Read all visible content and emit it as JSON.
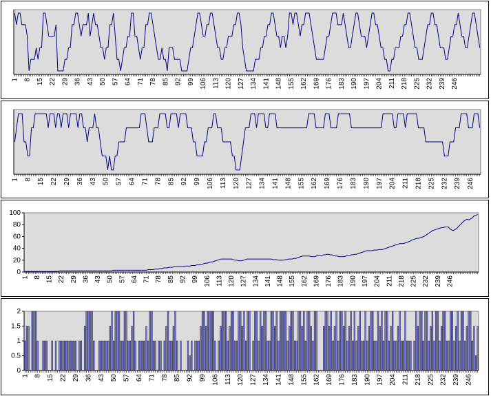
{
  "chart_data": [
    {
      "type": "line",
      "title": "",
      "xlabel": "",
      "ylabel": "",
      "x_range": [
        1,
        250
      ],
      "x_tick_labels": [
        "1",
        "8",
        "15",
        "22",
        "29",
        "36",
        "43",
        "50",
        "57",
        "64",
        "71",
        "78",
        "85",
        "92",
        "99",
        "106",
        "113",
        "120",
        "127",
        "134",
        "141",
        "148",
        "155",
        "162",
        "169",
        "176",
        "183",
        "190",
        "197",
        "204",
        "211",
        "218",
        "225",
        "232",
        "239",
        "246"
      ],
      "y_tick_labels": [],
      "grid": false,
      "line_color": "#000080",
      "plot_background": "#dcdcdc",
      "series": [
        {
          "name": "",
          "values": [
            9,
            8,
            9,
            9,
            8,
            8,
            8,
            7,
            4,
            5,
            5,
            5,
            6,
            5,
            6,
            6,
            9,
            9,
            8,
            7,
            7,
            7,
            7,
            8,
            4,
            4,
            4,
            4,
            5,
            5,
            6,
            6,
            8,
            8,
            9,
            9,
            8,
            7,
            8,
            8,
            8,
            9,
            7,
            8,
            9,
            8,
            8,
            7,
            6,
            6,
            5,
            6,
            6,
            8,
            8,
            9,
            7,
            5,
            5,
            4,
            5,
            6,
            6,
            7,
            7,
            9,
            9,
            7,
            7,
            6,
            5,
            6,
            6,
            8,
            8,
            9,
            9,
            8,
            7,
            6,
            5,
            5,
            6,
            5,
            5,
            4,
            6,
            6,
            6,
            5,
            5,
            5,
            5,
            4,
            4,
            4,
            4,
            5,
            6,
            6,
            7,
            8,
            9,
            9,
            8,
            7,
            7,
            8,
            8,
            9,
            9,
            8,
            7,
            6,
            6,
            5,
            5,
            6,
            6,
            7,
            7,
            7,
            8,
            8,
            9,
            9,
            8,
            6,
            5,
            4,
            4,
            4,
            4,
            4,
            5,
            5,
            5,
            6,
            6,
            7,
            7,
            8,
            8,
            9,
            9,
            8,
            7,
            7,
            6,
            7,
            7,
            6,
            7,
            9,
            9,
            8,
            9,
            9,
            8,
            7,
            8,
            8,
            9,
            9,
            9,
            8,
            7,
            6,
            5,
            5,
            5,
            5,
            5,
            6,
            7,
            7,
            8,
            9,
            9,
            9,
            8,
            8,
            8,
            9,
            8,
            7,
            6,
            6,
            7,
            8,
            9,
            9,
            8,
            7,
            7,
            7,
            6,
            7,
            8,
            9,
            9,
            8,
            8,
            7,
            6,
            6,
            5,
            5,
            4,
            4,
            5,
            5,
            6,
            6,
            6,
            7,
            7,
            8,
            8,
            9,
            9,
            8,
            7,
            6,
            6,
            5,
            5,
            5,
            6,
            7,
            8,
            8,
            9,
            9,
            8,
            8,
            7,
            6,
            6,
            6,
            5,
            5,
            6,
            7,
            7,
            8,
            8,
            9,
            8,
            7,
            7,
            6,
            6,
            7,
            8,
            9,
            9,
            8,
            7,
            6
          ]
        }
      ]
    },
    {
      "type": "line",
      "title": "",
      "xlabel": "",
      "ylabel": "",
      "x_range": [
        1,
        250
      ],
      "x_tick_labels": [
        "1",
        "8",
        "15",
        "22",
        "29",
        "36",
        "43",
        "50",
        "57",
        "64",
        "71",
        "78",
        "85",
        "92",
        "99",
        "106",
        "113",
        "120",
        "127",
        "134",
        "141",
        "148",
        "155",
        "162",
        "169",
        "176",
        "183",
        "190",
        "197",
        "204",
        "211",
        "218",
        "225",
        "232",
        "239",
        "246"
      ],
      "y_tick_labels": [],
      "grid": false,
      "line_color": "#000080",
      "plot_background": "#dcdcdc",
      "series": [
        {
          "name": "",
          "values": [
            6,
            7,
            8,
            8,
            8,
            6,
            6,
            5,
            5,
            7,
            7,
            8,
            8,
            8,
            8,
            8,
            8,
            8,
            7,
            8,
            8,
            8,
            7,
            8,
            8,
            7,
            8,
            8,
            8,
            7,
            8,
            8,
            8,
            8,
            7,
            8,
            8,
            7,
            7,
            6,
            7,
            7,
            7,
            8,
            7,
            7,
            6,
            5,
            5,
            5,
            4,
            5,
            4,
            4,
            5,
            5,
            6,
            6,
            6,
            6,
            7,
            7,
            7,
            7,
            7,
            7,
            7,
            7,
            8,
            8,
            8,
            7,
            6,
            6,
            6,
            7,
            7,
            7,
            8,
            8,
            8,
            8,
            7,
            7,
            8,
            8,
            8,
            8,
            7,
            8,
            8,
            8,
            8,
            7,
            7,
            7,
            6,
            6,
            5,
            5,
            5,
            5,
            6,
            6,
            7,
            7,
            7,
            8,
            8,
            7,
            7,
            7,
            6,
            6,
            6,
            6,
            6,
            5,
            5,
            4,
            4,
            4,
            5,
            6,
            7,
            7,
            7,
            8,
            8,
            8,
            7,
            8,
            8,
            8,
            8,
            7,
            7,
            8,
            8,
            8,
            8,
            7,
            7,
            7,
            7,
            7,
            7,
            7,
            7,
            7,
            7,
            7,
            7,
            7,
            7,
            7,
            7,
            7,
            8,
            8,
            8,
            8,
            7,
            7,
            7,
            7,
            7,
            8,
            8,
            8,
            7,
            7,
            7,
            7,
            8,
            8,
            8,
            8,
            8,
            8,
            8,
            7,
            7,
            7,
            7,
            7,
            7,
            7,
            7,
            7,
            7,
            7,
            7,
            7,
            7,
            7,
            7,
            7,
            8,
            8,
            8,
            8,
            8,
            8,
            7,
            7,
            8,
            8,
            8,
            8,
            7,
            8,
            8,
            8,
            8,
            8,
            8,
            7,
            7,
            7,
            7,
            6,
            6,
            6,
            6,
            6,
            6,
            6,
            6,
            6,
            6,
            5,
            5,
            5,
            6,
            6,
            6,
            7,
            7,
            7,
            8,
            8,
            8,
            8,
            7,
            7,
            7,
            8,
            8,
            8,
            7
          ]
        }
      ]
    },
    {
      "type": "line",
      "title": "",
      "xlabel": "",
      "ylabel": "",
      "x_range": [
        1,
        250
      ],
      "ylim": [
        0,
        100
      ],
      "x_tick_labels": [
        "1",
        "8",
        "15",
        "22",
        "29",
        "36",
        "43",
        "50",
        "57",
        "64",
        "71",
        "78",
        "85",
        "92",
        "99",
        "106",
        "113",
        "120",
        "127",
        "134",
        "141",
        "148",
        "155",
        "162",
        "169",
        "176",
        "183",
        "190",
        "197",
        "204",
        "211",
        "218",
        "225",
        "232",
        "239",
        "246"
      ],
      "y_tick_labels": [
        "0",
        "20",
        "40",
        "60",
        "80",
        "100"
      ],
      "grid": false,
      "line_color": "#000080",
      "plot_background": "#dcdcdc",
      "series": [
        {
          "name": "",
          "values": [
            1,
            1,
            1,
            1,
            1,
            1,
            1,
            1,
            1,
            1,
            1,
            1,
            1,
            1,
            1,
            1,
            1,
            1,
            1,
            1,
            2,
            2,
            2,
            2,
            2,
            2,
            2,
            2,
            2,
            2,
            2,
            2,
            2,
            2,
            2,
            2,
            2,
            2,
            2,
            2,
            2,
            2,
            2,
            2,
            2,
            2,
            2,
            2,
            2,
            2,
            2,
            3,
            3,
            3,
            3,
            3,
            3,
            3,
            3,
            3,
            3,
            3,
            3,
            3,
            3,
            3,
            3,
            3,
            3,
            3,
            3,
            4,
            4,
            4,
            4,
            5,
            5,
            5,
            6,
            6,
            7,
            7,
            7,
            8,
            8,
            8,
            9,
            9,
            9,
            9,
            9,
            9,
            10,
            10,
            10,
            10,
            11,
            11,
            11,
            12,
            12,
            12,
            13,
            14,
            15,
            15,
            16,
            17,
            17,
            18,
            19,
            20,
            21,
            22,
            22,
            22,
            22,
            22,
            22,
            22,
            21,
            20,
            20,
            19,
            19,
            19,
            20,
            21,
            22,
            22,
            22,
            22,
            22,
            22,
            22,
            22,
            22,
            22,
            22,
            22,
            22,
            22,
            22,
            21,
            21,
            21,
            20,
            20,
            20,
            20,
            21,
            21,
            22,
            22,
            22,
            23,
            23,
            24,
            25,
            26,
            27,
            27,
            27,
            27,
            27,
            26,
            26,
            26,
            27,
            28,
            28,
            28,
            29,
            29,
            30,
            30,
            29,
            29,
            28,
            27,
            27,
            26,
            26,
            26,
            26,
            27,
            28,
            28,
            29,
            29,
            30,
            30,
            31,
            32,
            33,
            34,
            35,
            36,
            36,
            36,
            36,
            37,
            37,
            37,
            38,
            38,
            38,
            39,
            40,
            41,
            42,
            43,
            44,
            45,
            46,
            47,
            48,
            48,
            48,
            49,
            50,
            51,
            52,
            54,
            55,
            56,
            57,
            57,
            58,
            59,
            60,
            62,
            64,
            66,
            68,
            70,
            71,
            72,
            73,
            74,
            75,
            75,
            76,
            76,
            76,
            73,
            71,
            70,
            72,
            74,
            77,
            80,
            83,
            86,
            88,
            89,
            88,
            90,
            92,
            95,
            96,
            97
          ]
        }
      ]
    },
    {
      "type": "bar",
      "title": "",
      "xlabel": "",
      "ylabel": "",
      "x_range": [
        1,
        250
      ],
      "ylim": [
        0,
        2
      ],
      "x_tick_labels": [
        "1",
        "8",
        "15",
        "22",
        "29",
        "36",
        "43",
        "50",
        "57",
        "64",
        "71",
        "78",
        "85",
        "92",
        "99",
        "106",
        "113",
        "120",
        "127",
        "134",
        "141",
        "148",
        "155",
        "162",
        "169",
        "176",
        "183",
        "190",
        "197",
        "204",
        "211",
        "218",
        "225",
        "232",
        "239",
        "246"
      ],
      "y_tick_labels": [
        "0",
        "0.5",
        "1",
        "1.5",
        "2"
      ],
      "grid": false,
      "bar_color": "#7b7bdc",
      "plot_background": "#dcdcdc",
      "series": [
        {
          "name": "",
          "values": [
            1,
            1.5,
            1.5,
            0,
            2,
            2,
            2,
            1,
            0,
            0,
            1,
            1,
            1,
            0,
            0,
            1,
            0,
            1,
            0,
            1,
            1,
            1,
            1,
            1,
            1,
            1,
            1,
            1,
            1,
            0,
            1,
            1,
            0,
            1.5,
            2,
            2,
            2,
            2,
            1,
            0,
            0,
            1,
            1,
            1,
            1,
            1,
            1,
            1.5,
            2,
            1,
            2,
            2,
            2,
            1,
            1,
            2,
            2,
            1,
            1,
            1.5,
            2,
            1,
            0,
            1,
            1,
            1,
            1,
            1.5,
            1,
            2,
            2,
            1,
            1,
            0,
            1,
            1,
            0,
            1,
            1.5,
            2,
            1,
            1,
            1.5,
            2,
            1,
            0,
            1,
            0,
            0,
            0,
            1,
            0.5,
            1,
            0,
            1,
            1,
            1,
            1.5,
            2,
            2,
            1.5,
            2,
            2,
            2,
            2,
            1,
            0,
            1,
            1.5,
            2,
            2,
            2,
            1,
            1.5,
            2,
            2,
            1,
            1,
            2,
            2,
            1.5,
            2,
            1,
            2,
            2,
            0,
            1,
            2,
            2,
            1,
            2,
            1.5,
            2,
            2,
            1,
            1,
            2,
            2,
            1.5,
            2,
            1,
            2,
            2,
            2,
            2,
            1,
            1.5,
            2,
            2,
            1,
            1,
            2,
            2,
            1.5,
            2,
            1,
            2,
            2,
            1.5,
            1,
            2,
            2,
            0,
            0,
            0,
            1.5,
            2,
            2,
            1.5,
            2,
            1,
            1.5,
            2,
            1,
            2,
            2,
            1.5,
            2,
            1,
            1.5,
            2,
            1,
            2,
            1,
            1.5,
            2,
            1,
            1,
            2,
            1,
            1.5,
            2,
            2,
            1,
            1,
            2,
            1.5,
            2,
            1,
            2,
            2,
            1,
            1.5,
            2,
            1,
            1,
            1.5,
            2,
            1,
            1,
            2,
            1,
            1,
            1,
            0,
            1,
            2,
            1.5,
            2,
            2,
            1,
            2,
            2,
            1,
            1.5,
            2,
            1,
            2,
            2,
            1,
            1.5,
            2,
            2,
            1,
            1,
            2,
            2,
            1,
            1.5,
            2,
            1,
            2,
            2,
            1,
            1.5,
            2,
            2,
            1,
            1.5,
            0.5,
            1.5
          ]
        }
      ]
    }
  ]
}
